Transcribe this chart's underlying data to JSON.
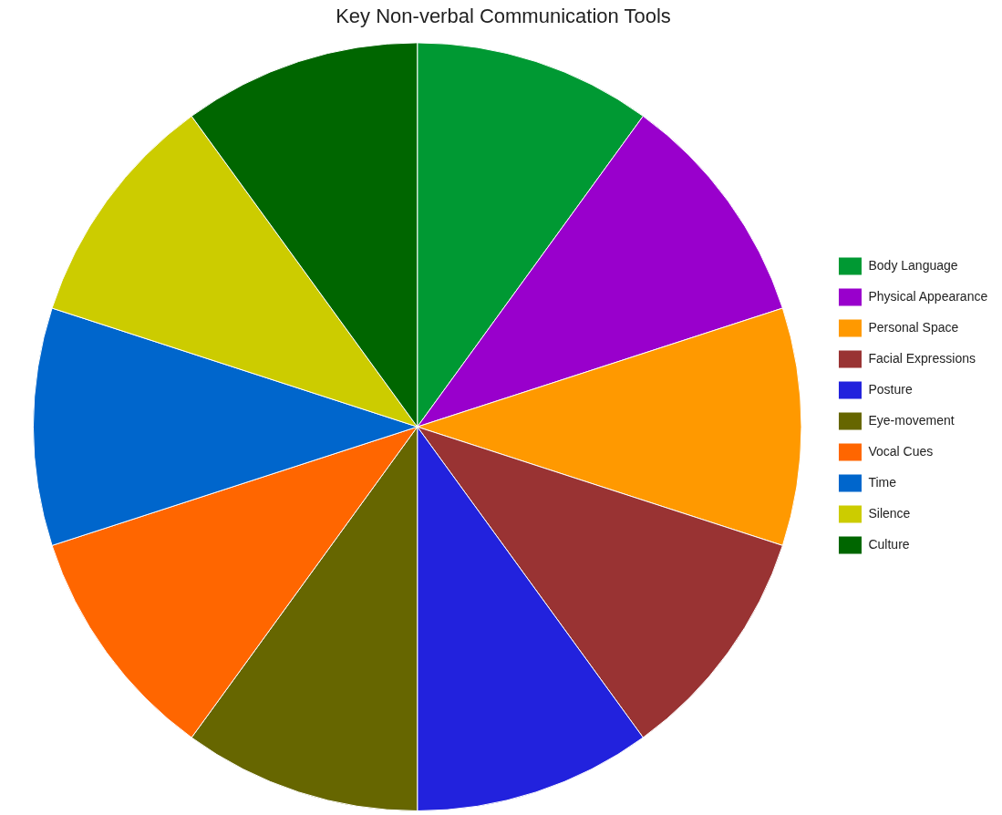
{
  "chart_data": {
    "type": "pie",
    "title": "Key Non-verbal Communication Tools",
    "categories": [
      "Body Language",
      "Physical Appearance",
      "Personal Space",
      "Facial Expressions",
      "Posture",
      "Eye-movement",
      "Vocal Cues",
      "Time",
      "Silence",
      "Culture"
    ],
    "values": [
      10,
      10,
      10,
      10,
      10,
      10,
      10,
      10,
      10,
      10
    ],
    "colors": [
      "#009933",
      "#9900cc",
      "#ff9900",
      "#993333",
      "#2222dd",
      "#666600",
      "#ff6600",
      "#0066cc",
      "#cccc00",
      "#006600"
    ],
    "legend": "right"
  }
}
